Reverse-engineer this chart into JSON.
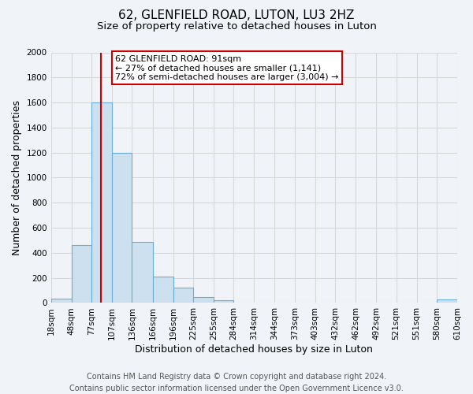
{
  "title": "62, GLENFIELD ROAD, LUTON, LU3 2HZ",
  "subtitle": "Size of property relative to detached houses in Luton",
  "xlabel": "Distribution of detached houses by size in Luton",
  "ylabel": "Number of detached properties",
  "bin_edges": [
    18,
    48,
    77,
    107,
    136,
    166,
    196,
    225,
    255,
    284,
    314,
    344,
    373,
    403,
    432,
    462,
    492,
    521,
    551,
    580,
    610
  ],
  "bar_heights": [
    35,
    460,
    1600,
    1200,
    490,
    210,
    120,
    45,
    20,
    0,
    0,
    0,
    0,
    0,
    0,
    0,
    0,
    0,
    0,
    25
  ],
  "bar_color": "#cce0f0",
  "bar_edge_color": "#6aaed6",
  "property_size": 91,
  "vline_color": "#cc0000",
  "annotation_text": "62 GLENFIELD ROAD: 91sqm\n← 27% of detached houses are smaller (1,141)\n72% of semi-detached houses are larger (3,004) →",
  "annotation_box_color": "white",
  "annotation_box_edge_color": "#cc0000",
  "ylim": [
    0,
    2000
  ],
  "yticks": [
    0,
    200,
    400,
    600,
    800,
    1000,
    1200,
    1400,
    1600,
    1800,
    2000
  ],
  "tick_labels": [
    "18sqm",
    "48sqm",
    "77sqm",
    "107sqm",
    "136sqm",
    "166sqm",
    "196sqm",
    "225sqm",
    "255sqm",
    "284sqm",
    "314sqm",
    "344sqm",
    "373sqm",
    "403sqm",
    "432sqm",
    "462sqm",
    "492sqm",
    "521sqm",
    "551sqm",
    "580sqm",
    "610sqm"
  ],
  "footer_line1": "Contains HM Land Registry data © Crown copyright and database right 2024.",
  "footer_line2": "Contains public sector information licensed under the Open Government Licence v3.0.",
  "background_color": "#f0f4f8",
  "plot_background_color": "#f0f4f8",
  "grid_color": "#d8d8d8",
  "title_fontsize": 11,
  "subtitle_fontsize": 9.5,
  "axis_label_fontsize": 9,
  "tick_fontsize": 7.5,
  "footer_fontsize": 7
}
